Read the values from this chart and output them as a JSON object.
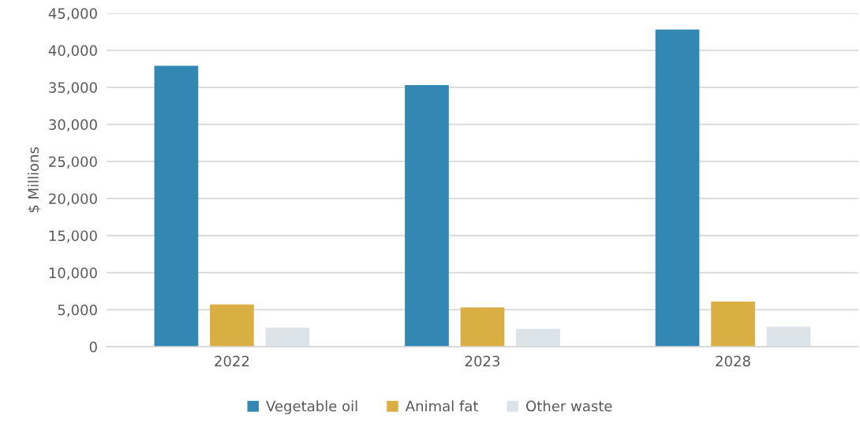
{
  "chart_data": {
    "type": "bar",
    "ylabel": "$ Millions",
    "categories": [
      "2022",
      "2023",
      "2028"
    ],
    "series": [
      {
        "name": "Vegetable oil",
        "color": "#3287b3",
        "values": [
          37900,
          35300,
          42800
        ]
      },
      {
        "name": "Animal fat",
        "color": "#d9ae43",
        "values": [
          5700,
          5300,
          6100
        ]
      },
      {
        "name": "Other waste",
        "color": "#dce4ea",
        "values": [
          2600,
          2400,
          2700
        ]
      }
    ],
    "ylim": [
      0,
      45000
    ],
    "yticks": [
      0,
      {
        "value": 5000,
        "label": "5,000"
      },
      {
        "value": 10000,
        "label": "10,000"
      },
      {
        "value": 15000,
        "label": "15,000"
      },
      {
        "value": 20000,
        "label": "20,000"
      },
      {
        "value": 25000,
        "label": "25,000"
      },
      {
        "value": 30000,
        "label": "30,000"
      },
      {
        "value": 35000,
        "label": "35,000"
      },
      {
        "value": 40000,
        "label": "40,000"
      },
      {
        "value": 45000,
        "label": "45,000"
      }
    ],
    "grid": "y",
    "legend": "bottom"
  }
}
